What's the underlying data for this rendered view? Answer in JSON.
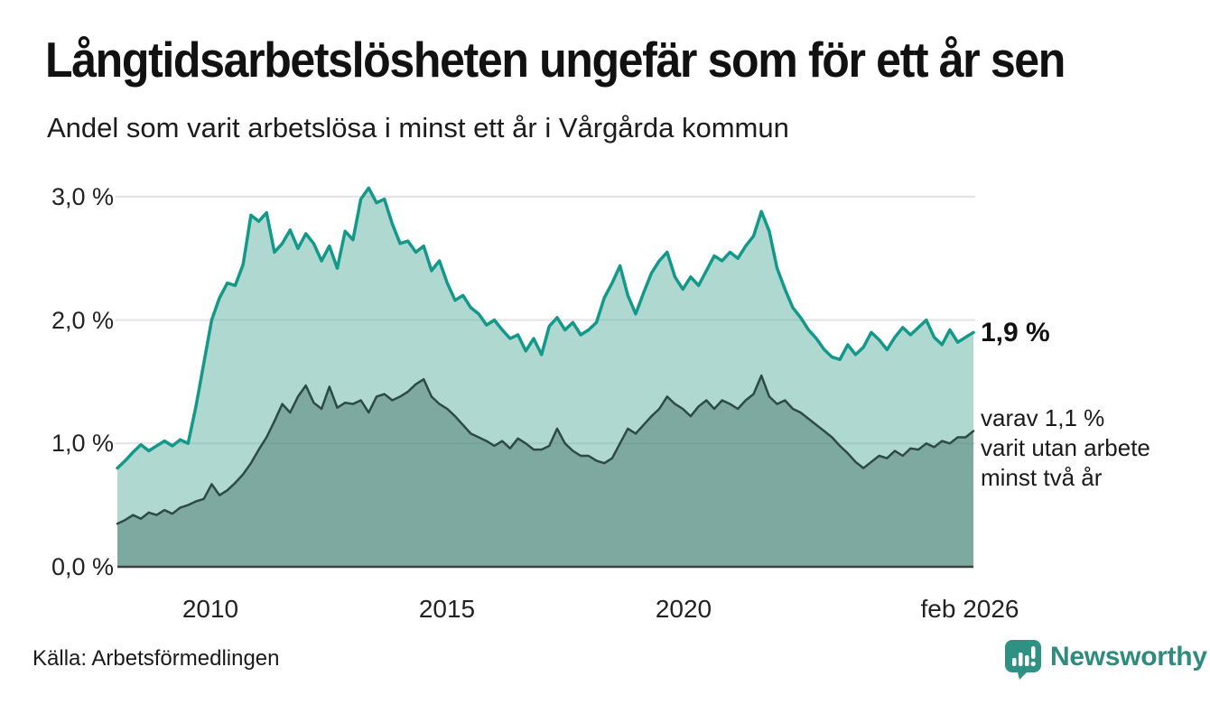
{
  "header": {
    "title": "Långtidsarbetslösheten ungefär som för ett år sen",
    "subtitle": "Andel som varit arbetslösa i minst ett år i Vårgårda kommun"
  },
  "chart_data": {
    "type": "area",
    "title": "Långtidsarbetslösheten ungefär som för ett år sen",
    "subtitle": "Andel som varit arbetslösa i minst ett år i Vårgårda kommun",
    "unit": "%",
    "x_domain": [
      2008.0,
      2026.1667
    ],
    "x_step": 0.1666667,
    "ylim": [
      0,
      3.2
    ],
    "grid": "horizontal",
    "y_ticks": [
      {
        "label": "3,0 %",
        "value": 3.0
      },
      {
        "label": "2,0 %",
        "value": 2.0
      },
      {
        "label": "1,0 %",
        "value": 1.0
      },
      {
        "label": "0,0 %",
        "value": 0.0
      }
    ],
    "x_ticks": [
      {
        "label": "2010",
        "value": 2010
      },
      {
        "label": "2015",
        "value": 2015
      },
      {
        "label": "2020",
        "value": 2020
      },
      {
        "label": "feb 2026",
        "value": 2026.05
      }
    ],
    "series": [
      {
        "name": "Andel som varit arbetslösa i minst ett år",
        "color": "#14988a",
        "fill": "rgba(93,177,161,0.5)",
        "stroke_width": 3.5,
        "latest_value": 1.9,
        "values": [
          0.8,
          0.86,
          0.93,
          0.99,
          0.94,
          0.98,
          1.02,
          0.98,
          1.03,
          1.0,
          1.3,
          1.65,
          2.0,
          2.18,
          2.3,
          2.28,
          2.45,
          2.85,
          2.8,
          2.87,
          2.55,
          2.62,
          2.73,
          2.58,
          2.7,
          2.62,
          2.48,
          2.6,
          2.42,
          2.72,
          2.65,
          2.98,
          3.07,
          2.95,
          2.98,
          2.78,
          2.62,
          2.64,
          2.55,
          2.6,
          2.4,
          2.48,
          2.3,
          2.16,
          2.2,
          2.1,
          2.05,
          1.96,
          2.0,
          1.92,
          1.85,
          1.88,
          1.75,
          1.85,
          1.72,
          1.95,
          2.02,
          1.92,
          1.98,
          1.88,
          1.92,
          1.98,
          2.18,
          2.3,
          2.44,
          2.2,
          2.05,
          2.22,
          2.38,
          2.48,
          2.55,
          2.35,
          2.25,
          2.35,
          2.28,
          2.4,
          2.52,
          2.48,
          2.55,
          2.5,
          2.6,
          2.68,
          2.88,
          2.72,
          2.42,
          2.25,
          2.1,
          2.02,
          1.92,
          1.85,
          1.76,
          1.7,
          1.68,
          1.8,
          1.72,
          1.78,
          1.9,
          1.84,
          1.76,
          1.86,
          1.94,
          1.88,
          1.94,
          2.0,
          1.86,
          1.8,
          1.92,
          1.82,
          1.86,
          1.9
        ]
      },
      {
        "name": "varav varit utan arbete minst två år",
        "color": "#2e4a44",
        "fill": "rgba(76,122,112,0.5)",
        "stroke_width": 2.5,
        "latest_value": 1.1,
        "values": [
          0.35,
          0.38,
          0.42,
          0.39,
          0.44,
          0.42,
          0.46,
          0.43,
          0.48,
          0.5,
          0.53,
          0.55,
          0.67,
          0.58,
          0.62,
          0.68,
          0.75,
          0.84,
          0.95,
          1.05,
          1.18,
          1.32,
          1.25,
          1.38,
          1.47,
          1.33,
          1.28,
          1.46,
          1.29,
          1.33,
          1.32,
          1.35,
          1.25,
          1.38,
          1.4,
          1.35,
          1.38,
          1.42,
          1.48,
          1.52,
          1.38,
          1.32,
          1.28,
          1.22,
          1.15,
          1.08,
          1.05,
          1.02,
          0.98,
          1.02,
          0.96,
          1.04,
          1.0,
          0.95,
          0.95,
          0.98,
          1.12,
          1.0,
          0.94,
          0.9,
          0.9,
          0.86,
          0.84,
          0.88,
          1.0,
          1.12,
          1.08,
          1.15,
          1.22,
          1.28,
          1.38,
          1.32,
          1.28,
          1.22,
          1.3,
          1.35,
          1.28,
          1.35,
          1.32,
          1.28,
          1.35,
          1.4,
          1.55,
          1.38,
          1.32,
          1.35,
          1.28,
          1.25,
          1.2,
          1.15,
          1.1,
          1.05,
          0.98,
          0.92,
          0.85,
          0.8,
          0.85,
          0.9,
          0.88,
          0.94,
          0.9,
          0.96,
          0.95,
          1.0,
          0.97,
          1.02,
          1.0,
          1.05,
          1.05,
          1.1
        ]
      }
    ],
    "end_labels": {
      "total": "1,9 %",
      "sub": "varav 1,1 %\nvarit utan arbete\nminst två år"
    }
  },
  "footer": {
    "source": "Källa: Arbetsförmedlingen",
    "brand": "Newsworthy"
  },
  "colors": {
    "gridline": "#e2e2e2",
    "baseline": "#3f3f3f",
    "brand_teal": "#2e8b7e",
    "badge_teal": "#2f9184"
  }
}
